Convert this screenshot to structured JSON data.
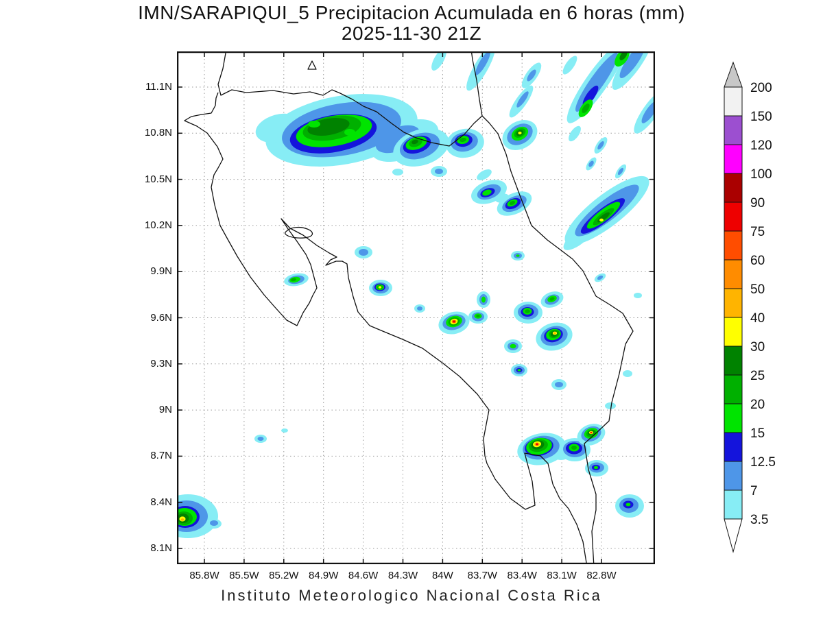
{
  "title": {
    "line1": "IMN/SARAPIQUI_5 Precipitacion Acumulada en 6 horas (mm)",
    "line2": "2025-11-30 21Z"
  },
  "footer": {
    "text": "Instituto Meteorologico Nacional Costa Rica"
  },
  "axes": {
    "y_ticks": [
      "11.1N",
      "10.8N",
      "10.5N",
      "10.2N",
      "9.9N",
      "9.6N",
      "9.3N",
      "9N",
      "8.7N",
      "8.4N",
      "8.1N"
    ],
    "x_ticks": [
      "85.8W",
      "85.5W",
      "85.2W",
      "84.9W",
      "84.6W",
      "84.3W",
      "84W",
      "83.7W",
      "83.4W",
      "83.1W",
      "82.8W"
    ]
  },
  "colorbar": {
    "unit": "mm",
    "levels": [
      "200",
      "150",
      "120",
      "100",
      "90",
      "75",
      "60",
      "50",
      "40",
      "30",
      "25",
      "20",
      "15",
      "12.5",
      "7",
      "3.5"
    ],
    "segment_colors_top_to_bottom": [
      "#F2F2F2",
      "#9C4FD0",
      "#FF00FF",
      "#AA0000",
      "#EE0000",
      "#FF4D00",
      "#FF8C00",
      "#FFB400",
      "#FFFF00",
      "#008200",
      "#00B000",
      "#00E400",
      "#1414DC",
      "#4E96E8",
      "#87EDF5"
    ],
    "above_max_color": "#C8C8C8",
    "below_min_color": "#FFFFFF"
  },
  "chart_data": {
    "type": "heatmap",
    "subtype": "precipitation-contour-map",
    "title": "IMN/SARAPIQUI_5 Precipitacion Acumulada en 6 horas (mm)",
    "valid_time": "2025-11-30 21Z",
    "region": "Costa Rica",
    "unit": "mm",
    "lat_range": [
      "8.1N",
      "11.1N"
    ],
    "lon_range": [
      "85.8W",
      "82.8W"
    ],
    "levels_mm": [
      3.5,
      7,
      12.5,
      15,
      20,
      25,
      30,
      40,
      50,
      60,
      75,
      90,
      100,
      120,
      150,
      200
    ],
    "legend_position": "right",
    "grid": "dotted",
    "notable_cells": [
      {
        "approx_lat": "10.8N",
        "approx_lon": "84.8W",
        "peak_mm": "25-30"
      },
      {
        "approx_lat": "10.8N",
        "approx_lon": "83.4W",
        "peak_mm": "30-40"
      },
      {
        "approx_lat": "9.6N",
        "approx_lon": "84.3W",
        "peak_mm": "30-40"
      },
      {
        "approx_lat": "9.58N",
        "approx_lon": "83.9W",
        "peak_mm": "75-90"
      },
      {
        "approx_lat": "9.48N",
        "approx_lon": "83.15W",
        "peak_mm": "40-50"
      },
      {
        "approx_lat": "8.78N",
        "approx_lon": "83.3W",
        "peak_mm": "75-90"
      },
      {
        "approx_lat": "8.85N",
        "approx_lon": "82.9W",
        "peak_mm": "75-90"
      },
      {
        "approx_lat": "8.3N",
        "approx_lon": "85.8W",
        "peak_mm": "40-50"
      }
    ],
    "source": "Instituto Meteorologico Nacional Costa Rica"
  }
}
